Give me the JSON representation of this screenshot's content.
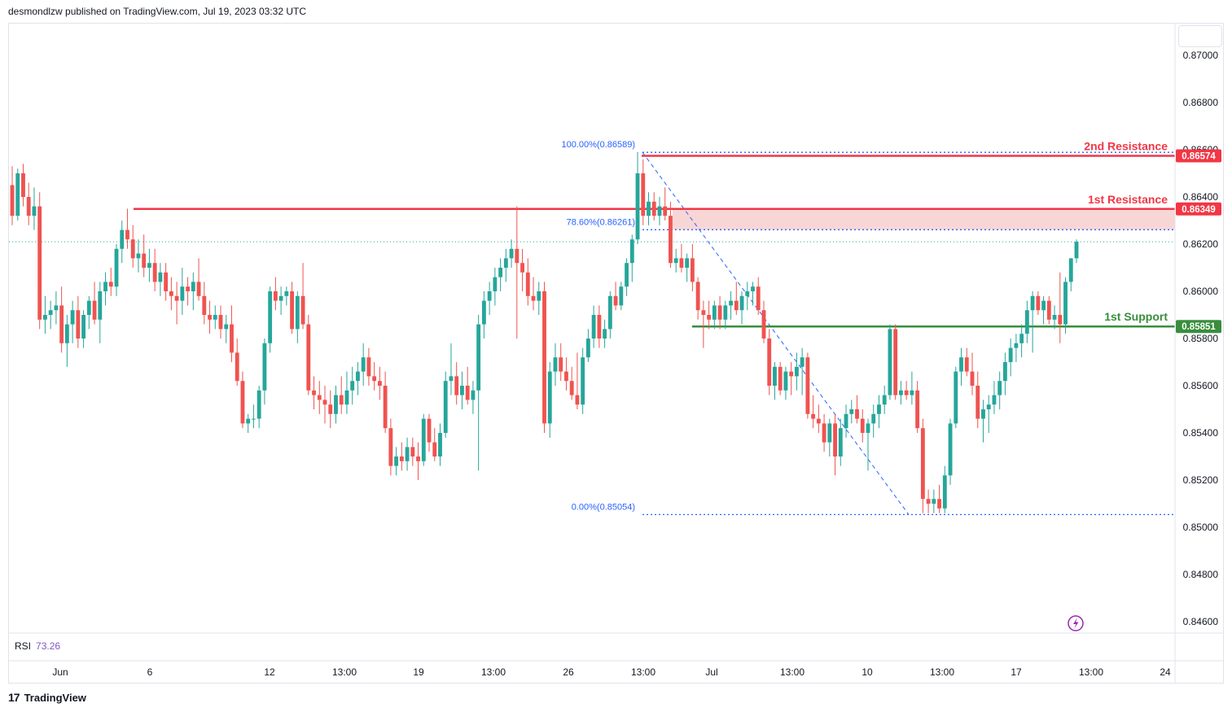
{
  "header": {
    "published": "desmondlzw published on TradingView.com, Jul 19, 2023 03:32 UTC"
  },
  "footer": {
    "brand": "TradingView",
    "logo": "17"
  },
  "rsi": {
    "label": "RSI",
    "value": "73.26"
  },
  "colors": {
    "up": "#26a69a",
    "down": "#ef5350",
    "resistance": "#f23645",
    "support": "#388e3c",
    "fib": "#2962ff",
    "zone": "#f8cccc",
    "rsi": "#7e57c2"
  },
  "chart_data": {
    "type": "candlestick",
    "symbol": "",
    "ylim": [
      0.8455,
      0.8715
    ],
    "y_ticks": [
      "0.87000",
      "0.86800",
      "0.86600",
      "0.86400",
      "0.86200",
      "0.86000",
      "0.85800",
      "0.85600",
      "0.85400",
      "0.85200",
      "0.85000",
      "0.84800",
      "0.84600"
    ],
    "x_ticks": [
      "Jun",
      "6",
      "12",
      "13:00",
      "19",
      "13:00",
      "26",
      "13:00",
      "Jul",
      "13:00",
      "10",
      "13:00",
      "17",
      "13:00",
      "24"
    ],
    "levels": [
      {
        "name": "2nd Resistance",
        "value": 0.86574,
        "label": "0.86574",
        "color": "#f23645"
      },
      {
        "name": "1st Resistance",
        "value": 0.86349,
        "label": "0.86349",
        "color": "#f23645"
      },
      {
        "name": "1st Support",
        "value": 0.85851,
        "label": "0.85851",
        "color": "#388e3c"
      }
    ],
    "fibonacci": [
      {
        "label": "100.00%(0.86589)",
        "value": 0.86589
      },
      {
        "label": "78.60%(0.86261)",
        "value": 0.86261
      },
      {
        "label": "0.00%(0.85054)",
        "value": 0.85054
      }
    ],
    "resistance_zone": [
      0.86261,
      0.86349
    ],
    "last_price": 0.8621,
    "candles": [
      [
        0.8645,
        0.8653,
        0.8628,
        0.8632
      ],
      [
        0.8632,
        0.8652,
        0.863,
        0.865
      ],
      [
        0.865,
        0.8654,
        0.8636,
        0.864
      ],
      [
        0.864,
        0.8646,
        0.8628,
        0.8632
      ],
      [
        0.8632,
        0.8644,
        0.8626,
        0.8636
      ],
      [
        0.8636,
        0.8642,
        0.8584,
        0.8588
      ],
      [
        0.8588,
        0.8598,
        0.8582,
        0.859
      ],
      [
        0.859,
        0.8596,
        0.8584,
        0.8592
      ],
      [
        0.8592,
        0.86,
        0.8586,
        0.8594
      ],
      [
        0.8594,
        0.8602,
        0.8574,
        0.8578
      ],
      [
        0.8578,
        0.859,
        0.8568,
        0.8586
      ],
      [
        0.8586,
        0.8596,
        0.8578,
        0.8592
      ],
      [
        0.8592,
        0.8598,
        0.8576,
        0.858
      ],
      [
        0.858,
        0.8592,
        0.8576,
        0.859
      ],
      [
        0.859,
        0.8598,
        0.8584,
        0.8596
      ],
      [
        0.8596,
        0.8604,
        0.8586,
        0.8588
      ],
      [
        0.8588,
        0.8604,
        0.8578,
        0.86
      ],
      [
        0.86,
        0.8608,
        0.8594,
        0.8604
      ],
      [
        0.8604,
        0.861,
        0.8598,
        0.8602
      ],
      [
        0.8602,
        0.862,
        0.8598,
        0.8618
      ],
      [
        0.8618,
        0.863,
        0.8612,
        0.8626
      ],
      [
        0.8626,
        0.8635,
        0.8618,
        0.8622
      ],
      [
        0.8622,
        0.8628,
        0.861,
        0.8614
      ],
      [
        0.8614,
        0.8622,
        0.8608,
        0.8616
      ],
      [
        0.8616,
        0.8624,
        0.8606,
        0.861
      ],
      [
        0.861,
        0.8618,
        0.8604,
        0.8612
      ],
      [
        0.8612,
        0.8618,
        0.86,
        0.8604
      ],
      [
        0.8604,
        0.8612,
        0.8598,
        0.8608
      ],
      [
        0.8608,
        0.8612,
        0.8596,
        0.86
      ],
      [
        0.86,
        0.8606,
        0.8592,
        0.8598
      ],
      [
        0.8598,
        0.8604,
        0.8586,
        0.8596
      ],
      [
        0.8596,
        0.861,
        0.859,
        0.8602
      ],
      [
        0.8602,
        0.8606,
        0.8594,
        0.86
      ],
      [
        0.86,
        0.8608,
        0.8592,
        0.8604
      ],
      [
        0.8604,
        0.8614,
        0.8596,
        0.8598
      ],
      [
        0.8598,
        0.8604,
        0.8586,
        0.859
      ],
      [
        0.859,
        0.8596,
        0.8582,
        0.8588
      ],
      [
        0.8588,
        0.8594,
        0.8584,
        0.859
      ],
      [
        0.859,
        0.8594,
        0.858,
        0.8584
      ],
      [
        0.8584,
        0.859,
        0.8578,
        0.8586
      ],
      [
        0.8586,
        0.8594,
        0.857,
        0.8574
      ],
      [
        0.8574,
        0.858,
        0.856,
        0.8562
      ],
      [
        0.8562,
        0.8566,
        0.8542,
        0.8544
      ],
      [
        0.8544,
        0.8548,
        0.854,
        0.8546
      ],
      [
        0.8546,
        0.8552,
        0.8542,
        0.8546
      ],
      [
        0.8546,
        0.856,
        0.8542,
        0.8558
      ],
      [
        0.8558,
        0.858,
        0.8552,
        0.8578
      ],
      [
        0.8578,
        0.8602,
        0.8574,
        0.86
      ],
      [
        0.86,
        0.8606,
        0.8592,
        0.8596
      ],
      [
        0.8596,
        0.8602,
        0.859,
        0.8598
      ],
      [
        0.8598,
        0.8602,
        0.8594,
        0.86
      ],
      [
        0.86,
        0.8604,
        0.8582,
        0.8584
      ],
      [
        0.8584,
        0.86,
        0.8578,
        0.8598
      ],
      [
        0.8598,
        0.8612,
        0.8584,
        0.8586
      ],
      [
        0.8586,
        0.859,
        0.8556,
        0.8558
      ],
      [
        0.8558,
        0.8564,
        0.855,
        0.8556
      ],
      [
        0.8556,
        0.8562,
        0.8548,
        0.8554
      ],
      [
        0.8554,
        0.856,
        0.8544,
        0.8552
      ],
      [
        0.8552,
        0.8558,
        0.8542,
        0.8548
      ],
      [
        0.8548,
        0.856,
        0.8544,
        0.8556
      ],
      [
        0.8556,
        0.8564,
        0.8548,
        0.8552
      ],
      [
        0.8552,
        0.8566,
        0.8548,
        0.8558
      ],
      [
        0.8558,
        0.8568,
        0.8552,
        0.8562
      ],
      [
        0.8562,
        0.857,
        0.8556,
        0.8566
      ],
      [
        0.8566,
        0.8578,
        0.856,
        0.8572
      ],
      [
        0.8572,
        0.8576,
        0.856,
        0.8564
      ],
      [
        0.8564,
        0.857,
        0.8558,
        0.8562
      ],
      [
        0.8562,
        0.8568,
        0.8554,
        0.856
      ],
      [
        0.856,
        0.8566,
        0.854,
        0.8542
      ],
      [
        0.8542,
        0.8546,
        0.8522,
        0.8526
      ],
      [
        0.8526,
        0.8534,
        0.8522,
        0.853
      ],
      [
        0.853,
        0.8536,
        0.8524,
        0.8528
      ],
      [
        0.8528,
        0.8538,
        0.8524,
        0.8534
      ],
      [
        0.8534,
        0.8538,
        0.8526,
        0.853
      ],
      [
        0.853,
        0.8536,
        0.852,
        0.8528
      ],
      [
        0.8528,
        0.8548,
        0.8526,
        0.8546
      ],
      [
        0.8546,
        0.8548,
        0.8532,
        0.8536
      ],
      [
        0.8536,
        0.8542,
        0.8528,
        0.853
      ],
      [
        0.853,
        0.8544,
        0.8526,
        0.854
      ],
      [
        0.854,
        0.8566,
        0.8538,
        0.8562
      ],
      [
        0.8562,
        0.8578,
        0.8556,
        0.8564
      ],
      [
        0.8564,
        0.857,
        0.8552,
        0.8556
      ],
      [
        0.8556,
        0.8566,
        0.855,
        0.856
      ],
      [
        0.856,
        0.8568,
        0.8552,
        0.8554
      ],
      [
        0.8554,
        0.8562,
        0.8548,
        0.8558
      ],
      [
        0.8558,
        0.859,
        0.8524,
        0.8586
      ],
      [
        0.8586,
        0.86,
        0.858,
        0.8596
      ],
      [
        0.8596,
        0.8604,
        0.859,
        0.86
      ],
      [
        0.86,
        0.861,
        0.8594,
        0.8606
      ],
      [
        0.8606,
        0.8614,
        0.86,
        0.861
      ],
      [
        0.861,
        0.8618,
        0.8604,
        0.8614
      ],
      [
        0.8614,
        0.8622,
        0.861,
        0.8618
      ],
      [
        0.8618,
        0.8636,
        0.858,
        0.8612
      ],
      [
        0.8612,
        0.8618,
        0.86,
        0.8608
      ],
      [
        0.8608,
        0.8614,
        0.8594,
        0.8598
      ],
      [
        0.8598,
        0.8606,
        0.8592,
        0.8596
      ],
      [
        0.8596,
        0.8604,
        0.859,
        0.86
      ],
      [
        0.86,
        0.8604,
        0.854,
        0.8544
      ],
      [
        0.8544,
        0.857,
        0.8538,
        0.8566
      ],
      [
        0.8566,
        0.8578,
        0.856,
        0.8572
      ],
      [
        0.8572,
        0.8578,
        0.8562,
        0.8566
      ],
      [
        0.8566,
        0.8572,
        0.8558,
        0.8562
      ],
      [
        0.8562,
        0.8568,
        0.8554,
        0.8556
      ],
      [
        0.8556,
        0.8574,
        0.855,
        0.8552
      ],
      [
        0.8552,
        0.8576,
        0.8548,
        0.8572
      ],
      [
        0.8572,
        0.8584,
        0.857,
        0.858
      ],
      [
        0.858,
        0.8594,
        0.8576,
        0.859
      ],
      [
        0.859,
        0.8594,
        0.8576,
        0.858
      ],
      [
        0.858,
        0.8588,
        0.8576,
        0.8584
      ],
      [
        0.8584,
        0.86,
        0.858,
        0.8598
      ],
      [
        0.8598,
        0.8604,
        0.8592,
        0.8594
      ],
      [
        0.8594,
        0.8604,
        0.8592,
        0.8602
      ],
      [
        0.8602,
        0.8614,
        0.8598,
        0.8612
      ],
      [
        0.8612,
        0.8624,
        0.8604,
        0.8622
      ],
      [
        0.8622,
        0.8659,
        0.862,
        0.865
      ],
      [
        0.865,
        0.8656,
        0.8628,
        0.8632
      ],
      [
        0.8632,
        0.8642,
        0.8628,
        0.8638
      ],
      [
        0.8638,
        0.8642,
        0.863,
        0.8632
      ],
      [
        0.8632,
        0.864,
        0.8628,
        0.8636
      ],
      [
        0.8636,
        0.8644,
        0.863,
        0.8632
      ],
      [
        0.8632,
        0.8638,
        0.861,
        0.8612
      ],
      [
        0.8612,
        0.8618,
        0.8608,
        0.8614
      ],
      [
        0.8614,
        0.862,
        0.8608,
        0.861
      ],
      [
        0.861,
        0.8616,
        0.8604,
        0.8614
      ],
      [
        0.8614,
        0.862,
        0.86,
        0.8604
      ],
      [
        0.8604,
        0.8606,
        0.8588,
        0.8592
      ],
      [
        0.8592,
        0.8596,
        0.8576,
        0.859
      ],
      [
        0.859,
        0.8596,
        0.8584,
        0.8588
      ],
      [
        0.8588,
        0.8596,
        0.8584,
        0.8594
      ],
      [
        0.8594,
        0.8598,
        0.8584,
        0.8588
      ],
      [
        0.8588,
        0.8596,
        0.8584,
        0.8594
      ],
      [
        0.8594,
        0.86,
        0.8588,
        0.8596
      ],
      [
        0.8596,
        0.8604,
        0.859,
        0.8592
      ],
      [
        0.8592,
        0.86,
        0.8586,
        0.8598
      ],
      [
        0.8598,
        0.8604,
        0.8592,
        0.86
      ],
      [
        0.86,
        0.8604,
        0.8594,
        0.8602
      ],
      [
        0.8602,
        0.8606,
        0.859,
        0.8592
      ],
      [
        0.8592,
        0.8596,
        0.8578,
        0.858
      ],
      [
        0.858,
        0.8584,
        0.8556,
        0.856
      ],
      [
        0.856,
        0.857,
        0.8554,
        0.8568
      ],
      [
        0.8568,
        0.857,
        0.8556,
        0.8558
      ],
      [
        0.8558,
        0.8568,
        0.8554,
        0.8566
      ],
      [
        0.8566,
        0.857,
        0.8556,
        0.8564
      ],
      [
        0.8564,
        0.8574,
        0.8558,
        0.8568
      ],
      [
        0.8568,
        0.8576,
        0.8556,
        0.8572
      ],
      [
        0.8572,
        0.8574,
        0.8546,
        0.8548
      ],
      [
        0.8548,
        0.8556,
        0.8542,
        0.8546
      ],
      [
        0.8546,
        0.8552,
        0.854,
        0.8544
      ],
      [
        0.8544,
        0.8548,
        0.8532,
        0.8536
      ],
      [
        0.8536,
        0.8546,
        0.853,
        0.8544
      ],
      [
        0.8544,
        0.8548,
        0.8522,
        0.853
      ],
      [
        0.853,
        0.8546,
        0.8526,
        0.8542
      ],
      [
        0.8542,
        0.8552,
        0.8538,
        0.8548
      ],
      [
        0.8548,
        0.8554,
        0.8544,
        0.855
      ],
      [
        0.855,
        0.8556,
        0.8544,
        0.8546
      ],
      [
        0.8546,
        0.855,
        0.8536,
        0.854
      ],
      [
        0.854,
        0.8546,
        0.8524,
        0.8544
      ],
      [
        0.8544,
        0.8552,
        0.8538,
        0.8548
      ],
      [
        0.8548,
        0.8556,
        0.8542,
        0.8552
      ],
      [
        0.8552,
        0.856,
        0.8548,
        0.8556
      ],
      [
        0.8556,
        0.8586,
        0.8554,
        0.8584
      ],
      [
        0.8584,
        0.8586,
        0.8554,
        0.8556
      ],
      [
        0.8556,
        0.8562,
        0.8552,
        0.8558
      ],
      [
        0.8558,
        0.8562,
        0.8554,
        0.8556
      ],
      [
        0.8556,
        0.8566,
        0.8552,
        0.8558
      ],
      [
        0.8558,
        0.8562,
        0.854,
        0.8542
      ],
      [
        0.8542,
        0.8546,
        0.8506,
        0.8512
      ],
      [
        0.8512,
        0.8516,
        0.8506,
        0.851
      ],
      [
        0.851,
        0.8516,
        0.8506,
        0.8512
      ],
      [
        0.8512,
        0.8518,
        0.8506,
        0.8508
      ],
      [
        0.8508,
        0.8526,
        0.8506,
        0.8522
      ],
      [
        0.8522,
        0.8546,
        0.8518,
        0.8544
      ],
      [
        0.8544,
        0.8568,
        0.8542,
        0.8566
      ],
      [
        0.8566,
        0.8576,
        0.856,
        0.8572
      ],
      [
        0.8572,
        0.8576,
        0.8564,
        0.8566
      ],
      [
        0.8566,
        0.8574,
        0.8556,
        0.856
      ],
      [
        0.856,
        0.8566,
        0.8542,
        0.8546
      ],
      [
        0.8546,
        0.8554,
        0.8536,
        0.855
      ],
      [
        0.855,
        0.8556,
        0.854,
        0.8552
      ],
      [
        0.8552,
        0.8562,
        0.8548,
        0.8556
      ],
      [
        0.8556,
        0.8566,
        0.855,
        0.8562
      ],
      [
        0.8562,
        0.8574,
        0.8556,
        0.857
      ],
      [
        0.857,
        0.858,
        0.8564,
        0.8576
      ],
      [
        0.8576,
        0.8582,
        0.857,
        0.8578
      ],
      [
        0.8578,
        0.8586,
        0.8572,
        0.8582
      ],
      [
        0.8582,
        0.8596,
        0.8578,
        0.8592
      ],
      [
        0.8592,
        0.86,
        0.8574,
        0.8598
      ],
      [
        0.8598,
        0.86,
        0.859,
        0.8592
      ],
      [
        0.8592,
        0.8598,
        0.8586,
        0.8596
      ],
      [
        0.8596,
        0.8598,
        0.8586,
        0.8588
      ],
      [
        0.8588,
        0.8594,
        0.8584,
        0.859
      ],
      [
        0.859,
        0.8608,
        0.8578,
        0.8586
      ],
      [
        0.8586,
        0.8606,
        0.8582,
        0.8604
      ],
      [
        0.8604,
        0.8614,
        0.86,
        0.8614
      ],
      [
        0.8614,
        0.8622,
        0.8612,
        0.8621
      ]
    ]
  }
}
